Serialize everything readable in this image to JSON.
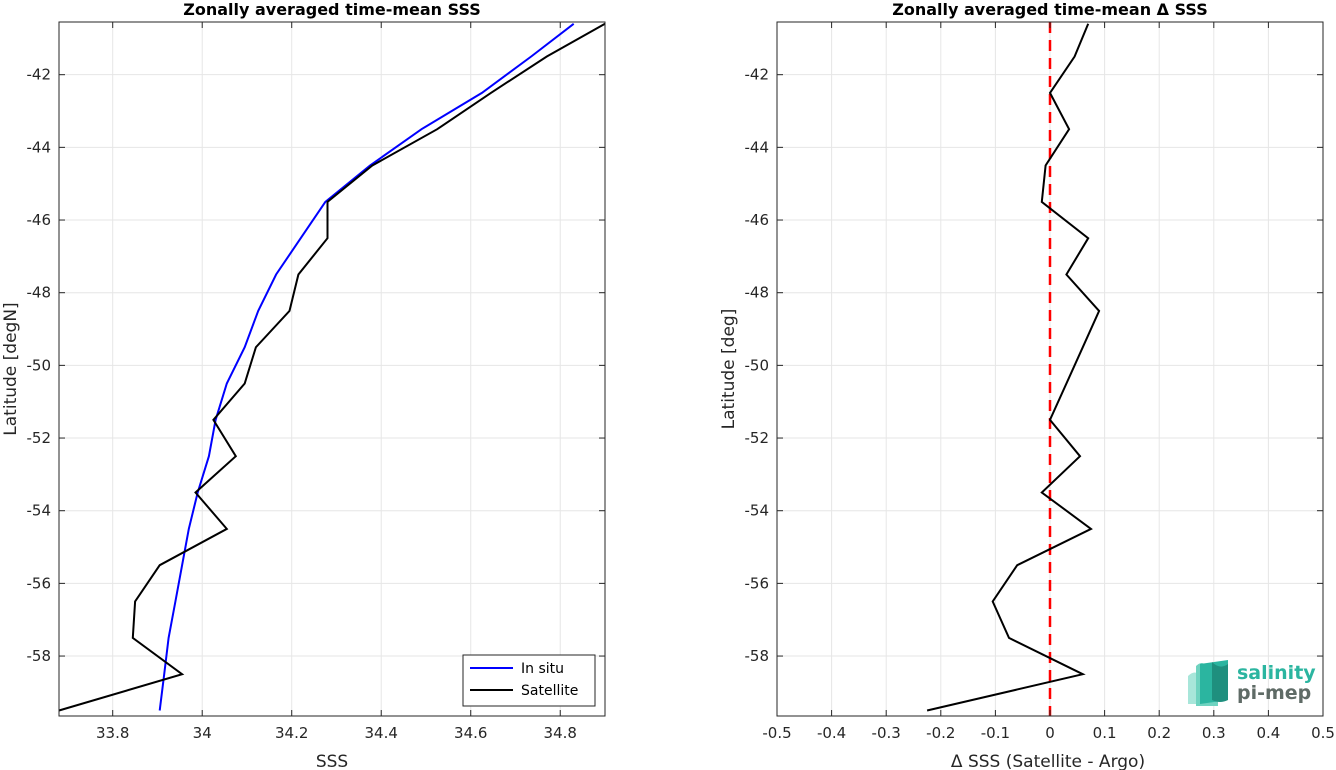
{
  "chart_data": [
    {
      "type": "line",
      "title": "Zonally averaged time-mean SSS",
      "xlabel": "SSS",
      "ylabel": "Latitude [degN]",
      "xlim": [
        33.68,
        34.9
      ],
      "ylim": [
        -59.65,
        -40.55
      ],
      "xticks": [
        33.8,
        34,
        34.2,
        34.4,
        34.6,
        34.8
      ],
      "xtick_labels": [
        "33.8",
        "34",
        "34.2",
        "34.4",
        "34.6",
        "34.8"
      ],
      "yticks": [
        -58,
        -56,
        -54,
        -52,
        -50,
        -48,
        -46,
        -44,
        -42
      ],
      "ytick_labels": [
        "-58",
        "-56",
        "-54",
        "-52",
        "-50",
        "-48",
        "-46",
        "-44",
        "-42"
      ],
      "grid": true,
      "legend_position": "bottom-right",
      "series": [
        {
          "name": "In situ",
          "color": "#0000ff",
          "x": [
            33.905,
            33.915,
            33.925,
            33.94,
            33.955,
            33.97,
            33.99,
            34.015,
            34.03,
            34.055,
            34.095,
            34.125,
            34.165,
            34.22,
            34.275,
            34.375,
            34.49,
            34.625,
            34.735,
            34.83
          ],
          "y": [
            -59.5,
            -58.5,
            -57.5,
            -56.5,
            -55.5,
            -54.5,
            -53.5,
            -52.5,
            -51.5,
            -50.5,
            -49.5,
            -48.5,
            -47.5,
            -46.5,
            -45.5,
            -44.5,
            -43.5,
            -42.5,
            -41.5,
            -40.6
          ]
        },
        {
          "name": "Satellite",
          "color": "#000000",
          "x": [
            33.68,
            33.955,
            33.845,
            33.85,
            33.905,
            34.055,
            33.985,
            34.075,
            34.025,
            34.095,
            34.12,
            34.195,
            34.215,
            34.28,
            34.28,
            34.38,
            34.525,
            34.645,
            34.77,
            34.9
          ],
          "y": [
            -59.5,
            -58.5,
            -57.5,
            -56.5,
            -55.5,
            -54.5,
            -53.5,
            -52.5,
            -51.5,
            -50.5,
            -49.5,
            -48.5,
            -47.5,
            -46.5,
            -45.5,
            -44.5,
            -43.5,
            -42.5,
            -41.5,
            -40.6
          ]
        }
      ]
    },
    {
      "type": "line",
      "title": "Zonally averaged time-mean Δ SSS",
      "xlabel": "Δ SSS (Satellite - Argo)",
      "ylabel": "Latitude [deg]",
      "xlim": [
        -0.5,
        0.5
      ],
      "ylim": [
        -59.65,
        -40.55
      ],
      "xticks": [
        -0.5,
        -0.4,
        -0.3,
        -0.2,
        -0.1,
        0,
        0.1,
        0.2,
        0.3,
        0.4,
        0.5
      ],
      "xtick_labels": [
        "-0.5",
        "-0.4",
        "-0.3",
        "-0.2",
        "-0.1",
        "0",
        "0.1",
        "0.2",
        "0.3",
        "0.4",
        "0.5"
      ],
      "yticks": [
        -58,
        -56,
        -54,
        -52,
        -50,
        -48,
        -46,
        -44,
        -42
      ],
      "ytick_labels": [
        "-58",
        "-56",
        "-54",
        "-52",
        "-50",
        "-48",
        "-46",
        "-44",
        "-42"
      ],
      "grid": true,
      "reference_line": {
        "x": 0,
        "color": "#ff0000",
        "style": "dashed"
      },
      "series": [
        {
          "color": "#000000",
          "x": [
            -0.225,
            0.06,
            -0.075,
            -0.105,
            -0.06,
            0.075,
            -0.015,
            0.055,
            0.0,
            0.06,
            0.09,
            0.03,
            0.07,
            -0.015,
            -0.008,
            0.035,
            0.0,
            0.045,
            0.07
          ],
          "y": [
            -59.5,
            -58.5,
            -57.5,
            -56.5,
            -55.5,
            -54.5,
            -53.5,
            -52.5,
            -51.5,
            -49.5,
            -48.5,
            -47.5,
            -46.5,
            -45.5,
            -44.5,
            -43.5,
            -42.5,
            -41.5,
            -40.6
          ]
        }
      ]
    }
  ],
  "logo": {
    "line1": "salinity",
    "line2": "pi-mep",
    "color1": "#2bb5a0",
    "color2": "#5f6b66"
  }
}
